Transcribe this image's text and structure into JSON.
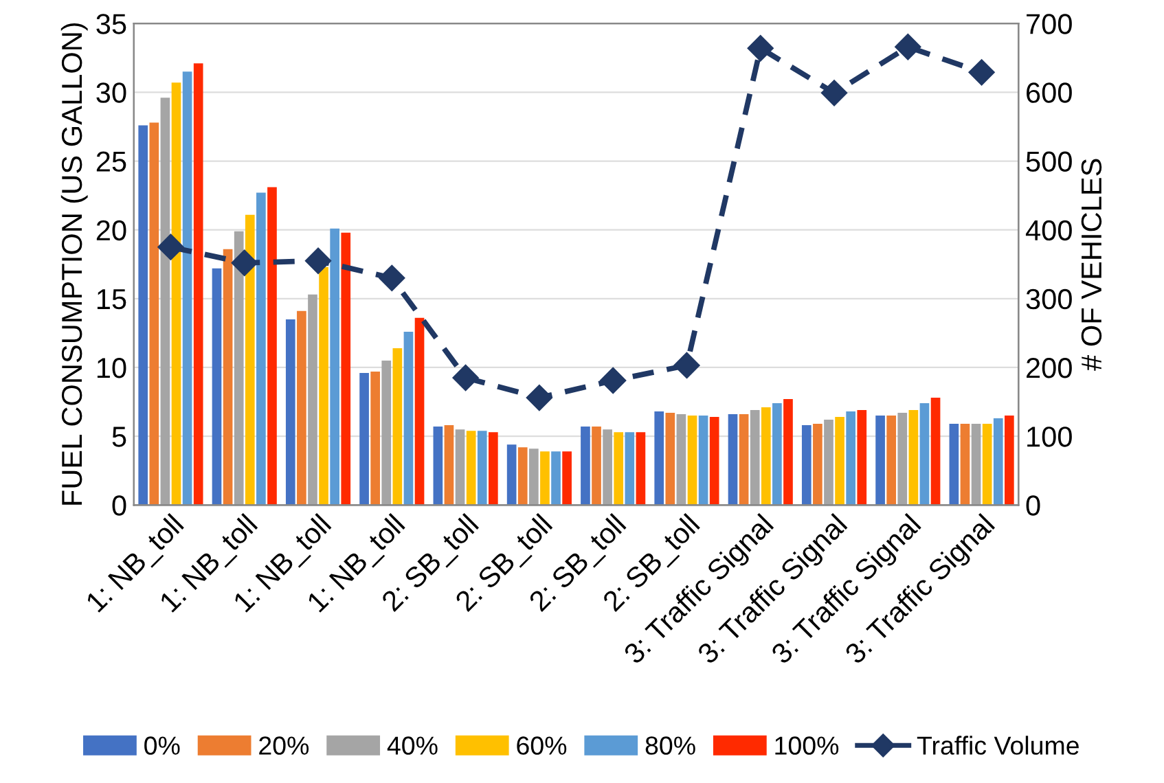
{
  "chart_data": {
    "type": "bar",
    "ylabel": "FUEL CONSUMPTION (US GALLON)",
    "y2label": "# OF VEHICLES",
    "categories": [
      "1: NB_toll",
      "1: NB_toll",
      "1: NB_toll",
      "1: NB_toll",
      "2: SB_toll",
      "2: SB_toll",
      "2: SB_toll",
      "2: SB_toll",
      "3: Traffic Signal",
      "3: Traffic Signal",
      "3: Traffic Signal",
      "3: Traffic Signal"
    ],
    "series": [
      {
        "name": "0%",
        "color": "#4472c4",
        "values": [
          27.6,
          17.2,
          13.5,
          9.6,
          5.7,
          4.4,
          5.7,
          6.8,
          6.6,
          5.8,
          6.5,
          5.9
        ]
      },
      {
        "name": "20%",
        "color": "#ed7d31",
        "values": [
          27.8,
          18.6,
          14.1,
          9.7,
          5.8,
          4.2,
          5.7,
          6.7,
          6.6,
          5.9,
          6.5,
          5.9
        ]
      },
      {
        "name": "40%",
        "color": "#a5a5a5",
        "values": [
          29.6,
          19.9,
          15.3,
          10.5,
          5.5,
          4.1,
          5.5,
          6.6,
          6.9,
          6.2,
          6.7,
          5.9
        ]
      },
      {
        "name": "60%",
        "color": "#ffc000",
        "values": [
          30.7,
          21.1,
          17.3,
          11.4,
          5.4,
          3.9,
          5.3,
          6.5,
          7.1,
          6.4,
          6.9,
          5.9
        ]
      },
      {
        "name": "80%",
        "color": "#5b9bd5",
        "values": [
          31.5,
          22.7,
          20.1,
          12.6,
          5.4,
          3.9,
          5.3,
          6.5,
          7.4,
          6.8,
          7.4,
          6.3
        ]
      },
      {
        "name": "100%",
        "color": "#ff2a00",
        "values": [
          32.1,
          23.1,
          19.8,
          13.6,
          5.3,
          3.9,
          5.3,
          6.4,
          7.7,
          6.9,
          7.8,
          6.5
        ]
      },
      {
        "name": "Traffic Volume",
        "type": "line",
        "axis": "y2",
        "color": "#203864",
        "marker": "diamond",
        "line_style": "dashed",
        "values": [
          375,
          352,
          355,
          330,
          185,
          156,
          181,
          203,
          664,
          599,
          666,
          629
        ]
      }
    ],
    "ylim": [
      0,
      35
    ],
    "yticks": [
      0,
      5,
      10,
      15,
      20,
      25,
      30,
      35
    ],
    "y2lim": [
      0,
      700
    ],
    "y2ticks": [
      0,
      100,
      200,
      300,
      400,
      500,
      600,
      700
    ],
    "grid": "y",
    "legend": "bottom"
  }
}
